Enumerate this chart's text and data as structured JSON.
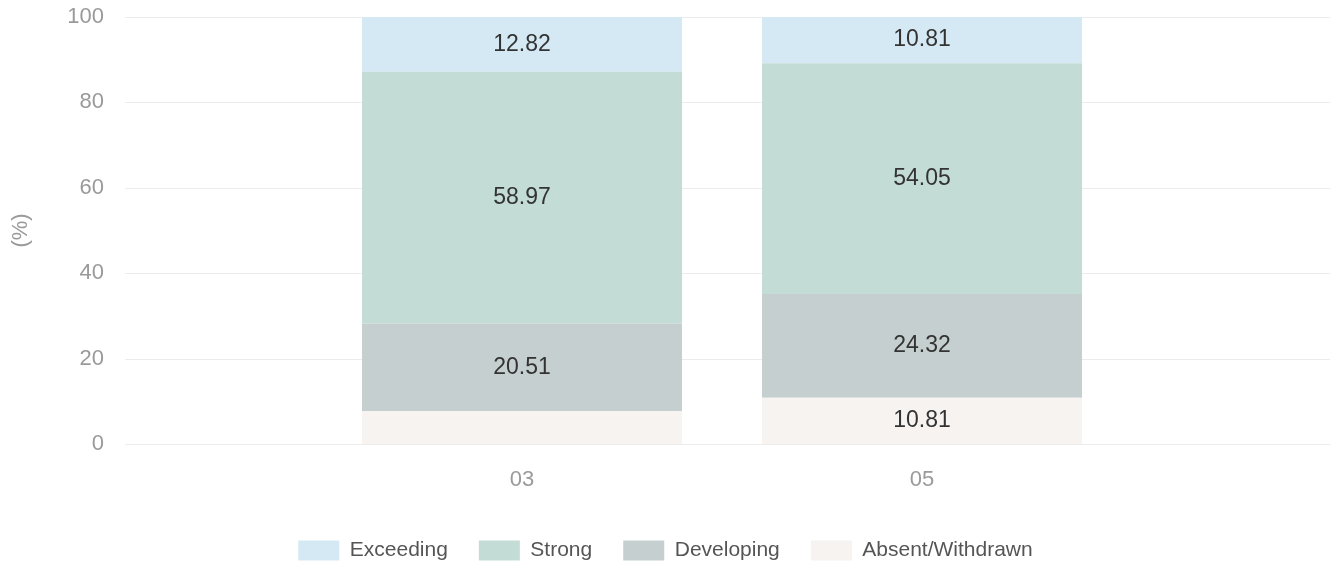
{
  "chart_data": {
    "type": "bar",
    "stacked": true,
    "categories": [
      "03",
      "05"
    ],
    "ylabel": "(%)",
    "ylim": [
      0,
      100
    ],
    "yticks": [
      0,
      20,
      40,
      60,
      80,
      100
    ],
    "grid": "y",
    "legend": "bottom",
    "series": [
      {
        "name": "Absent/Withdrawn",
        "color": "#f6f3f0",
        "values": [
          7.7,
          10.81
        ],
        "value_labels": [
          null,
          "10.81"
        ]
      },
      {
        "name": "Developing",
        "color": "#c6cfcf",
        "values": [
          20.51,
          24.32
        ],
        "value_labels": [
          "20.51",
          "24.32"
        ]
      },
      {
        "name": "Strong",
        "color": "#c4dcd6",
        "values": [
          58.97,
          54.05
        ],
        "value_labels": [
          "58.97",
          "54.05"
        ]
      },
      {
        "name": "Exceeding",
        "color": "#d5e9f4",
        "values": [
          12.82,
          10.81
        ],
        "value_labels": [
          "12.82",
          "10.81"
        ]
      }
    ]
  }
}
